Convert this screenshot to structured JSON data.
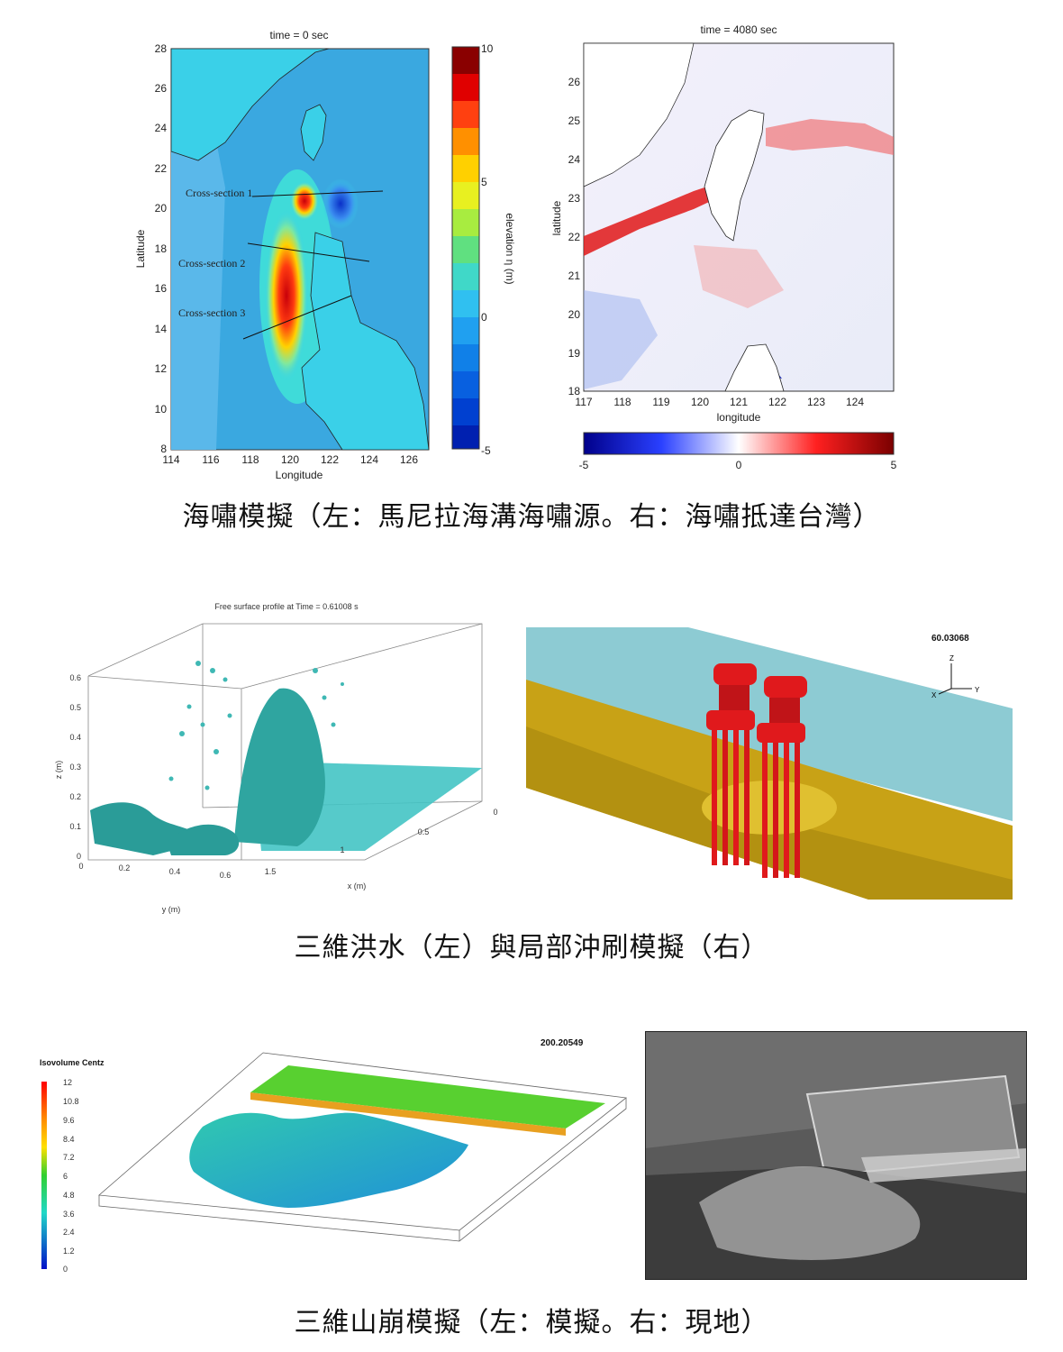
{
  "tsunami": {
    "left_map": {
      "title": "time = 0 sec",
      "xlabel": "Longitude",
      "ylabel": "Latitude",
      "x_ticks": [
        "114",
        "116",
        "118",
        "120",
        "122",
        "124",
        "126"
      ],
      "y_ticks": [
        "28",
        "26",
        "24",
        "22",
        "20",
        "18",
        "16",
        "14",
        "12",
        "10",
        "8"
      ],
      "colorbar_label": "elevation η (m)",
      "colorbar_ticks": [
        "10",
        "5",
        "0",
        "-5"
      ],
      "cross_sections": [
        "Cross-section 1",
        "Cross-section 2",
        "Cross-section 3"
      ]
    },
    "right_map": {
      "title": "time = 4080 sec",
      "xlabel": "longitude",
      "ylabel": "latitude",
      "x_ticks": [
        "117",
        "118",
        "119",
        "120",
        "121",
        "122",
        "123",
        "124"
      ],
      "y_ticks": [
        "26",
        "25",
        "24",
        "23",
        "22",
        "21",
        "20",
        "19",
        "18"
      ],
      "colorbar_ticks": [
        "-5",
        "0",
        "5"
      ]
    },
    "caption": "海嘯模擬（左：馬尼拉海溝海嘯源。右：海嘯抵達台灣）"
  },
  "flood": {
    "left_plot": {
      "title": "Free surface profile at Time = 0.61008 s",
      "zlabel": "z (m)",
      "xlabel": "x (m)",
      "ylabel": "y (m)",
      "z_ticks": [
        "0.6",
        "0.5",
        "0.4",
        "0.3",
        "0.2",
        "0.1",
        "0"
      ],
      "y_ticks": [
        "0",
        "0.2",
        "0.4",
        "0.6"
      ],
      "x_ticks": [
        "1.5",
        "1",
        "0.5",
        "0"
      ]
    },
    "right_plot": {
      "time_label": "60.03068",
      "axis_z": "Z",
      "axis_x": "X",
      "axis_y": "Y"
    },
    "caption": "三維洪水（左）與局部沖刷模擬（右）"
  },
  "landslide": {
    "left_plot": {
      "time_label": "200.20549",
      "legend_title": "Isovolume Centz",
      "legend_ticks": [
        "12",
        "10.8",
        "9.6",
        "8.4",
        "7.2",
        "6",
        "4.8",
        "3.6",
        "2.4",
        "1.2",
        "0"
      ]
    },
    "caption": "三維山崩模擬（左：模擬。右：現地）"
  }
}
